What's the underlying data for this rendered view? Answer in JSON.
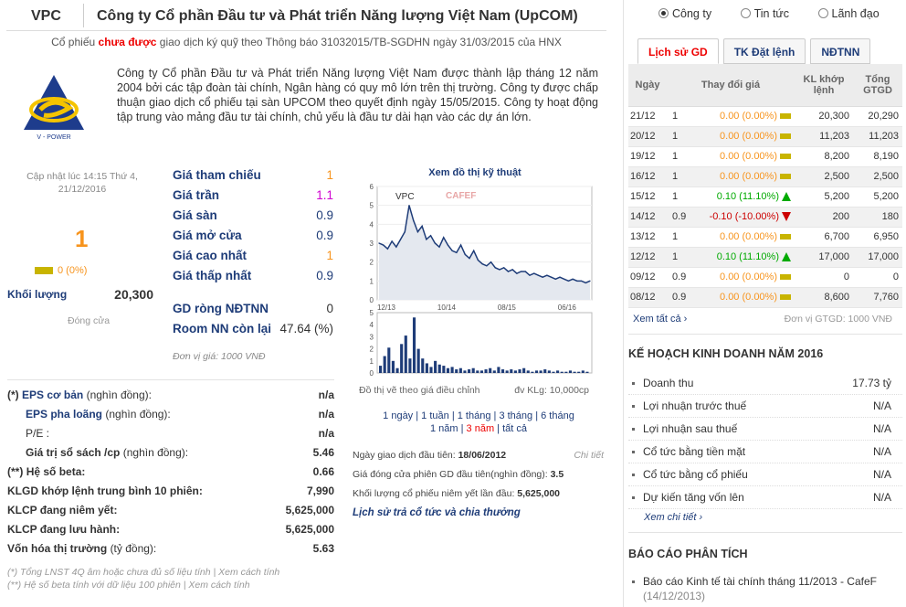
{
  "header": {
    "code": "VPC",
    "company_name": "Công ty Cổ phần Đầu tư và Phát triển Năng lượng Việt Nam (UpCOM)"
  },
  "notice": {
    "prefix": "Cổ phiếu",
    "highlight": "chưa được",
    "suffix": "giao dịch ký quỹ theo Thông báo 31032015/TB-SGDHN ngày 31/03/2015 của HNX"
  },
  "logo": {
    "text": "V - POWER"
  },
  "description": "Công ty Cổ phần Đầu tư và Phát triển Năng lượng Việt Nam được thành lập tháng 12 năm 2004 bởi các tập đoàn tài chính, Ngân hàng có quy mô lớn trên thị trường. Công ty được chấp thuận giao dịch cổ phiếu tại sàn UPCOM theo quyết định ngày 15/05/2015. Công ty hoạt động tập trung vào mảng đầu tư tài chính, chủ yếu là đầu tư dài hạn vào các dự án lớn.",
  "quote": {
    "updated": "Cập nhật lúc 14:15 Thứ 4, 21/12/2016",
    "price": "1",
    "change": "0 (0%)",
    "volume_label": "Khối lượng",
    "volume": "20,300",
    "close_label": "Đóng cửa"
  },
  "prices": [
    {
      "label": "Giá tham chiếu",
      "value": "1"
    },
    {
      "label": "Giá trần",
      "value": "1.1"
    },
    {
      "label": "Giá sàn",
      "value": "0.9"
    },
    {
      "label": "Giá mở cửa",
      "value": "0.9"
    },
    {
      "label": "Giá cao nhất",
      "value": "1"
    },
    {
      "label": "Giá thấp nhất",
      "value": "0.9"
    }
  ],
  "foreign": [
    {
      "label": "GD ròng NĐTNN",
      "value": "0"
    },
    {
      "label": "Room NN còn lại",
      "value": "47.64 (%)"
    }
  ],
  "price_unit": "Đơn vị giá: 1000 VNĐ",
  "chart": {
    "title": "Xem đồ thị kỹ thuật",
    "ticker": "VPC",
    "watermark": "CAFEF",
    "note_left": "Đồ thị vẽ theo giá điều chỉnh",
    "note_right": "đv KLg: 10,000cp",
    "ranges_line1": [
      "1 ngày",
      "1 tuần",
      "1 tháng",
      "3 tháng",
      "6 tháng"
    ],
    "ranges_line2": [
      "1 năm",
      "3 năm",
      "tất cả"
    ],
    "active_range": "3 năm"
  },
  "chart_data": {
    "type": "line",
    "x_ticks": [
      "12/13",
      "10/14",
      "08/15",
      "06/16"
    ],
    "y_ticks": [
      0,
      1,
      2,
      3,
      4,
      5,
      6
    ],
    "ylim": [
      0,
      6
    ],
    "series": [
      {
        "name": "VPC",
        "values": [
          3.0,
          2.9,
          2.7,
          3.1,
          2.8,
          3.2,
          3.6,
          5.0,
          4.2,
          3.6,
          3.9,
          3.2,
          3.4,
          3.0,
          2.8,
          3.3,
          2.9,
          2.6,
          2.5,
          2.9,
          2.4,
          2.2,
          2.6,
          2.1,
          1.9,
          1.8,
          2.0,
          1.7,
          1.6,
          1.7,
          1.5,
          1.6,
          1.4,
          1.5,
          1.5,
          1.3,
          1.4,
          1.3,
          1.2,
          1.3,
          1.2,
          1.1,
          1.2,
          1.1,
          1.0,
          1.1,
          1.0,
          1.0,
          0.9,
          1.0
        ]
      }
    ],
    "volume_ylim": [
      0,
      5
    ],
    "volume_values": [
      0.6,
      1.4,
      2.1,
      1.0,
      0.4,
      2.4,
      3.1,
      1.2,
      4.6,
      2.0,
      1.2,
      0.8,
      0.5,
      1.0,
      0.7,
      0.6,
      0.4,
      0.5,
      0.3,
      0.4,
      0.2,
      0.3,
      0.4,
      0.2,
      0.2,
      0.3,
      0.4,
      0.2,
      0.5,
      0.3,
      0.2,
      0.3,
      0.2,
      0.3,
      0.4,
      0.2,
      0.1,
      0.2,
      0.2,
      0.3,
      0.2,
      0.1,
      0.2,
      0.1,
      0.1,
      0.2,
      0.1,
      0.1,
      0.2,
      0.1
    ],
    "volume_y_ticks": [
      0,
      1,
      2,
      3,
      4,
      5
    ]
  },
  "first_trade": {
    "date_label": "Ngày giao dịch đầu tiên:",
    "date": "18/06/2012",
    "detail_link": "Chi tiết",
    "close_label": "Giá đóng cửa phiên GD đầu tiên(nghìn đồng):",
    "close": "3.5",
    "vol_label": "Khối lượng cổ phiếu niêm yết lần đầu:",
    "vol": "5,625,000",
    "dividend_link": "Lịch sử trả cổ tức và chia thưởng"
  },
  "fundamentals": [
    {
      "prefix": "(*)",
      "label": "EPS cơ bản",
      "unit": "(nghìn đồng):",
      "value": "n/a"
    },
    {
      "prefix": "",
      "label": "EPS pha loãng",
      "unit": "(nghìn đồng):",
      "value": "n/a"
    },
    {
      "prefix": "",
      "label": "P/E :",
      "unit": "",
      "value": "n/a"
    },
    {
      "prefix": "",
      "label": "Giá trị sổ sách /cp",
      "unit": "(nghìn đồng):",
      "value": "5.46"
    },
    {
      "prefix": "(**)",
      "label": "Hệ số beta:",
      "unit": "",
      "value": "0.66"
    },
    {
      "prefix": "",
      "label": "KLGD khớp lệnh trung bình 10 phiên:",
      "unit": "",
      "value": "7,990"
    },
    {
      "prefix": "",
      "label": "KLCP đang niêm yết:",
      "unit": "",
      "value": "5,625,000"
    },
    {
      "prefix": "",
      "label": "KLCP đang lưu hành:",
      "unit": "",
      "value": "5,625,000"
    },
    {
      "prefix": "",
      "label": "Vốn hóa thị trường",
      "unit": "(tỷ đồng):",
      "value": "5.63"
    }
  ],
  "footnotes": [
    "(*) Tổng LNST 4Q âm hoặc chưa đủ số liệu tính | Xem cách tính",
    "(**) Hệ số beta tính với dữ liệu 100 phiên | Xem cách tính"
  ],
  "radio": {
    "options": [
      "Công ty",
      "Tin tức",
      "Lãnh đạo"
    ],
    "selected": "Công ty"
  },
  "tabs": [
    "Lịch sử GD",
    "TK Đặt lệnh",
    "NĐTNN"
  ],
  "history": {
    "headers": [
      "Ngày",
      "Thay đổi giá",
      "KL khớp lệnh",
      "Tổng GTGD"
    ],
    "rows": [
      {
        "date": "21/12",
        "price": "1",
        "change": "0.00 (0.00%)",
        "dir": "ref",
        "vol": "20,300",
        "val": "20,290"
      },
      {
        "date": "20/12",
        "price": "1",
        "change": "0.00 (0.00%)",
        "dir": "ref",
        "vol": "11,203",
        "val": "11,203"
      },
      {
        "date": "19/12",
        "price": "1",
        "change": "0.00 (0.00%)",
        "dir": "ref",
        "vol": "8,200",
        "val": "8,190"
      },
      {
        "date": "16/12",
        "price": "1",
        "change": "0.00 (0.00%)",
        "dir": "ref",
        "vol": "2,500",
        "val": "2,500"
      },
      {
        "date": "15/12",
        "price": "1",
        "change": "0.10 (11.10%)",
        "dir": "up",
        "vol": "5,200",
        "val": "5,200"
      },
      {
        "date": "14/12",
        "price": "0.9",
        "change": "-0.10 (-10.00%)",
        "dir": "dn",
        "vol": "200",
        "val": "180"
      },
      {
        "date": "13/12",
        "price": "1",
        "change": "0.00 (0.00%)",
        "dir": "ref",
        "vol": "6,700",
        "val": "6,950"
      },
      {
        "date": "12/12",
        "price": "1",
        "change": "0.10 (11.10%)",
        "dir": "up",
        "vol": "17,000",
        "val": "17,000"
      },
      {
        "date": "09/12",
        "price": "0.9",
        "change": "0.00 (0.00%)",
        "dir": "ref",
        "vol": "0",
        "val": "0"
      },
      {
        "date": "08/12",
        "price": "0.9",
        "change": "0.00 (0.00%)",
        "dir": "ref",
        "vol": "8,600",
        "val": "7,760"
      }
    ],
    "see_all": "Xem tất cả",
    "unit": "Đơn vị GTGD: 1000 VNĐ"
  },
  "plan": {
    "title": "KẾ HOẠCH KINH DOANH NĂM 2016",
    "rows": [
      {
        "label": "Doanh thu",
        "value": "17.73 tỷ"
      },
      {
        "label": "Lợi nhuận trước thuế",
        "value": "N/A"
      },
      {
        "label": "Lợi nhuận sau thuế",
        "value": "N/A"
      },
      {
        "label": "Cổ tức bằng tiền mặt",
        "value": "N/A"
      },
      {
        "label": "Cổ tức bằng cổ phiếu",
        "value": "N/A"
      },
      {
        "label": "Dự kiến tăng vốn lên",
        "value": "N/A"
      }
    ],
    "see_detail": "Xem chi tiết"
  },
  "analysis": {
    "title": "BÁO CÁO PHÂN TÍCH",
    "item": "Báo cáo Kinh tế tài chính tháng 11/2013 - CafeF",
    "date": "(14/12/2013)"
  }
}
